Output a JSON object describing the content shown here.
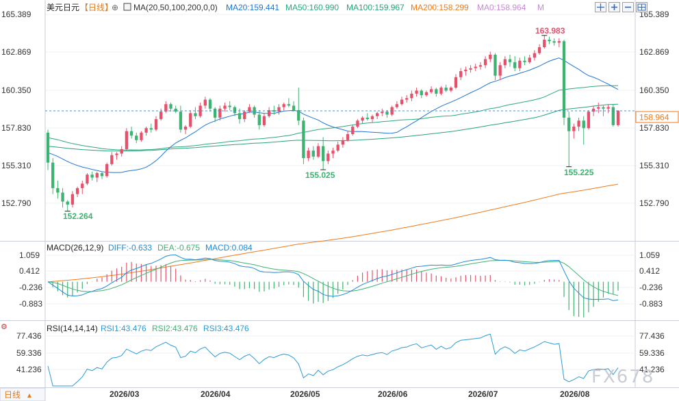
{
  "header": {
    "symbol": "美元日元",
    "period": "【日线】",
    "ma_label": "MA(20,50,100,200,0,0)",
    "ma20": "MA20:159.441",
    "ma50": "MA50:160.990",
    "ma100": "MA100:159.967",
    "ma200": "MA200:158.299",
    "ma0": "MA0:158.964",
    "m": "M"
  },
  "toolbar": {
    "buttons": [
      "crosshair-icon",
      "zoom-in-icon",
      "zoom-out-icon",
      "grid-icon"
    ]
  },
  "colors": {
    "up": "#e5516a",
    "down": "#3cb371",
    "ma20": "#1e74d6",
    "ma50": "#2aa87b",
    "ma100": "#27a27a",
    "ma200": "#f07a1a",
    "current": "#f07a1a",
    "diff": "#1e8ad6",
    "dea": "#3cb371",
    "rsi": "#2a9bd6",
    "watermark": "#c8ccd4"
  },
  "price_axis": {
    "ticks": [
      "165.389",
      "162.869",
      "160.350",
      "157.830",
      "155.310",
      "152.790"
    ]
  },
  "current_price": "158.964",
  "annotations": {
    "high": "163.983",
    "low1": "152.264",
    "low2": "155.025",
    "low3": "155.225"
  },
  "macd": {
    "label": "MACD(26,12,9)",
    "diff": "DIFF:-0.633",
    "dea": "DEA:-0.675",
    "macd": "MACD:0.084",
    "ticks": [
      "1.059",
      "0.412",
      "-0.236",
      "-0.883"
    ]
  },
  "rsi": {
    "label": "RSI(14,14,14)",
    "rsi1": "RSI1:43.476",
    "rsi2": "RSI2:43.476",
    "rsi3": "RSI3:43.476",
    "ticks": [
      "77.436",
      "59.336",
      "41.236"
    ]
  },
  "dates": [
    "2026/03",
    "2026/04",
    "2026/05",
    "2026/06",
    "2026/07",
    "2026/08"
  ],
  "footer": {
    "period_button": "日线"
  },
  "watermark": "FX678",
  "chart_data": {
    "type": "candlestick",
    "title": "美元日元 日线",
    "x_labels": [
      "2026/03",
      "2026/04",
      "2026/05",
      "2026/06",
      "2026/07",
      "2026/08"
    ],
    "ylim": [
      152.0,
      166.0
    ],
    "candles": [
      [
        157.5,
        157.7,
        155.0,
        155.5
      ],
      [
        155.5,
        155.8,
        153.4,
        153.8
      ],
      [
        153.8,
        154.3,
        153.1,
        153.5
      ],
      [
        153.5,
        153.8,
        152.5,
        152.9
      ],
      [
        152.9,
        153.0,
        152.264,
        152.7
      ],
      [
        152.7,
        153.6,
        152.5,
        153.4
      ],
      [
        153.4,
        153.9,
        153.2,
        153.8
      ],
      [
        153.8,
        154.3,
        153.4,
        154.1
      ],
      [
        154.1,
        154.8,
        154.0,
        154.7
      ],
      [
        154.7,
        154.9,
        154.3,
        154.5
      ],
      [
        154.5,
        154.9,
        154.2,
        154.8
      ],
      [
        154.8,
        154.9,
        154.4,
        154.6
      ],
      [
        154.6,
        155.5,
        154.5,
        155.4
      ],
      [
        155.4,
        156.2,
        155.3,
        156.0
      ],
      [
        156.0,
        156.2,
        155.7,
        156.1
      ],
      [
        156.1,
        156.6,
        155.9,
        156.4
      ],
      [
        156.4,
        157.8,
        156.3,
        157.6
      ],
      [
        157.6,
        157.9,
        157.1,
        157.3
      ],
      [
        157.3,
        157.5,
        156.8,
        157.0
      ],
      [
        157.0,
        157.6,
        156.9,
        157.5
      ],
      [
        157.5,
        157.9,
        157.3,
        157.8
      ],
      [
        157.8,
        158.1,
        157.5,
        157.7
      ],
      [
        157.7,
        158.6,
        157.6,
        158.4
      ],
      [
        158.4,
        159.1,
        158.3,
        158.9
      ],
      [
        158.9,
        159.6,
        158.8,
        159.4
      ],
      [
        159.4,
        159.5,
        158.9,
        159.1
      ],
      [
        159.1,
        159.3,
        158.8,
        158.9
      ],
      [
        158.9,
        159.3,
        157.5,
        157.7
      ],
      [
        157.7,
        158.0,
        157.4,
        157.9
      ],
      [
        157.9,
        159.0,
        157.8,
        158.8
      ],
      [
        158.8,
        159.2,
        158.4,
        158.6
      ],
      [
        158.6,
        159.5,
        158.5,
        159.3
      ],
      [
        159.3,
        159.9,
        159.1,
        159.7
      ],
      [
        159.7,
        159.8,
        158.9,
        159.1
      ],
      [
        159.1,
        159.2,
        158.2,
        158.5
      ],
      [
        158.5,
        159.3,
        158.3,
        159.1
      ],
      [
        159.1,
        159.5,
        158.9,
        159.3
      ],
      [
        159.3,
        159.6,
        159.0,
        159.2
      ],
      [
        159.2,
        159.3,
        158.6,
        158.8
      ],
      [
        158.8,
        159.1,
        158.1,
        158.4
      ],
      [
        158.4,
        159.0,
        158.2,
        158.9
      ],
      [
        158.9,
        159.4,
        158.8,
        159.2
      ],
      [
        159.2,
        159.3,
        158.5,
        158.7
      ],
      [
        158.7,
        159.0,
        157.7,
        158.0
      ],
      [
        158.0,
        158.8,
        157.9,
        158.6
      ],
      [
        158.6,
        159.2,
        158.5,
        159.0
      ],
      [
        159.0,
        159.3,
        158.7,
        158.9
      ],
      [
        158.9,
        159.4,
        158.7,
        159.2
      ],
      [
        159.2,
        159.5,
        159.0,
        159.4
      ],
      [
        159.4,
        159.8,
        159.2,
        159.3
      ],
      [
        159.3,
        159.6,
        158.9,
        159.0
      ],
      [
        159.0,
        160.5,
        158.0,
        158.3
      ],
      [
        158.3,
        158.5,
        155.4,
        155.8
      ],
      [
        155.8,
        156.5,
        155.6,
        156.3
      ],
      [
        156.3,
        156.6,
        155.7,
        155.9
      ],
      [
        155.9,
        156.8,
        155.8,
        156.6
      ],
      [
        156.6,
        157.2,
        155.025,
        155.6
      ],
      [
        155.6,
        156.3,
        155.4,
        156.1
      ],
      [
        156.1,
        156.5,
        155.8,
        156.3
      ],
      [
        156.3,
        156.9,
        156.2,
        156.7
      ],
      [
        156.7,
        157.2,
        156.5,
        157.0
      ],
      [
        157.0,
        157.6,
        156.9,
        157.4
      ],
      [
        157.4,
        158.0,
        157.3,
        157.9
      ],
      [
        157.9,
        158.4,
        157.8,
        158.3
      ],
      [
        158.3,
        158.6,
        158.1,
        158.5
      ],
      [
        158.5,
        158.8,
        158.3,
        158.4
      ],
      [
        158.4,
        158.7,
        158.2,
        158.6
      ],
      [
        158.6,
        158.9,
        158.4,
        158.8
      ],
      [
        158.8,
        159.1,
        158.6,
        158.9
      ],
      [
        158.9,
        159.0,
        158.5,
        158.7
      ],
      [
        158.7,
        159.3,
        158.6,
        159.2
      ],
      [
        159.2,
        159.6,
        159.1,
        159.4
      ],
      [
        159.4,
        159.9,
        159.3,
        159.7
      ],
      [
        159.7,
        160.0,
        159.5,
        159.8
      ],
      [
        159.8,
        160.3,
        159.6,
        160.1
      ],
      [
        160.1,
        160.5,
        159.9,
        160.3
      ],
      [
        160.3,
        160.4,
        159.8,
        160.0
      ],
      [
        160.0,
        160.3,
        159.9,
        160.2
      ],
      [
        160.2,
        160.6,
        160.1,
        160.4
      ],
      [
        160.4,
        160.5,
        159.9,
        160.1
      ],
      [
        160.1,
        160.6,
        160.0,
        160.5
      ],
      [
        160.5,
        160.7,
        160.2,
        160.3
      ],
      [
        160.3,
        160.6,
        160.2,
        160.5
      ],
      [
        160.5,
        161.4,
        160.4,
        161.2
      ],
      [
        161.2,
        161.8,
        161.0,
        161.6
      ],
      [
        161.6,
        161.9,
        161.3,
        161.7
      ],
      [
        161.7,
        162.0,
        161.5,
        161.8
      ],
      [
        161.8,
        162.1,
        161.6,
        161.9
      ],
      [
        161.9,
        162.2,
        161.7,
        162.0
      ],
      [
        162.0,
        162.6,
        161.8,
        162.4
      ],
      [
        162.4,
        162.9,
        162.2,
        162.7
      ],
      [
        162.7,
        162.8,
        161.0,
        161.3
      ],
      [
        161.3,
        162.2,
        161.0,
        162.0
      ],
      [
        162.0,
        162.6,
        161.8,
        162.4
      ],
      [
        162.4,
        162.7,
        161.9,
        162.2
      ],
      [
        162.2,
        162.6,
        161.6,
        161.8
      ],
      [
        161.8,
        162.5,
        161.6,
        162.3
      ],
      [
        162.3,
        162.6,
        162.0,
        162.2
      ],
      [
        162.2,
        162.7,
        162.1,
        162.5
      ],
      [
        162.5,
        163.0,
        162.3,
        162.8
      ],
      [
        162.8,
        163.4,
        162.7,
        163.2
      ],
      [
        163.2,
        163.983,
        163.1,
        163.7
      ],
      [
        163.7,
        163.9,
        163.4,
        163.6
      ],
      [
        163.6,
        163.8,
        163.3,
        163.5
      ],
      [
        163.5,
        163.8,
        163.2,
        163.6
      ],
      [
        163.6,
        163.7,
        158.0,
        158.5
      ],
      [
        158.5,
        158.9,
        155.225,
        157.6
      ],
      [
        157.6,
        158.1,
        157.1,
        157.9
      ],
      [
        157.9,
        158.5,
        157.6,
        158.3
      ],
      [
        158.3,
        158.6,
        156.7,
        157.8
      ],
      [
        157.8,
        159.0,
        157.7,
        158.9
      ],
      [
        158.9,
        159.3,
        158.6,
        159.1
      ],
      [
        159.1,
        159.5,
        158.8,
        159.2
      ],
      [
        159.2,
        159.3,
        158.6,
        159.1
      ],
      [
        159.1,
        159.4,
        158.8,
        159.2
      ],
      [
        159.2,
        159.4,
        157.9,
        158.0
      ],
      [
        158.0,
        159.0,
        157.9,
        158.964
      ]
    ],
    "macd_range": [
      -1.2,
      1.3
    ],
    "rsi_range": [
      30,
      85
    ]
  }
}
